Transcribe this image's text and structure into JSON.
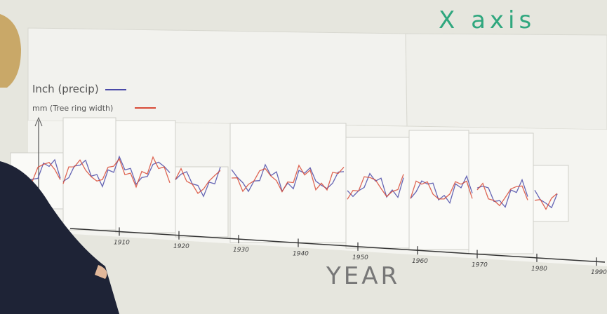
{
  "heading": "X axis",
  "legend": [
    {
      "label": "Inch (precip)",
      "color": "#4a4aa8"
    },
    {
      "label": "mm (Tree ring width)",
      "color": "#d84a36"
    }
  ],
  "axis_label": "YEAR",
  "ticks": [
    "1910",
    "1920",
    "1930",
    "1940",
    "1950",
    "1960",
    "1970",
    "1980",
    "1990"
  ]
}
